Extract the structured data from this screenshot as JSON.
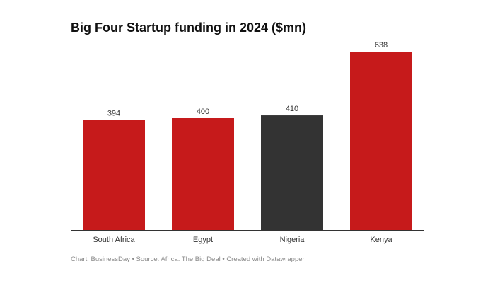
{
  "chart_data": {
    "type": "bar",
    "title": "Big Four Startup funding in 2024 ($mn)",
    "categories": [
      "South Africa",
      "Egypt",
      "Nigeria",
      "Kenya"
    ],
    "values": [
      394,
      400,
      410,
      638
    ],
    "data_labels": [
      "394",
      "400",
      "410",
      "638"
    ],
    "bar_colors": [
      "#c61a1b",
      "#c61a1b",
      "#333333",
      "#c61a1b"
    ],
    "xlabel": "",
    "ylabel": "",
    "ylim": [
      0,
      638
    ],
    "grid": false,
    "legend": "none"
  },
  "footer": {
    "source": "Chart: BusinessDay • Source: Africa: The Big Deal • Created with Datawrapper"
  }
}
